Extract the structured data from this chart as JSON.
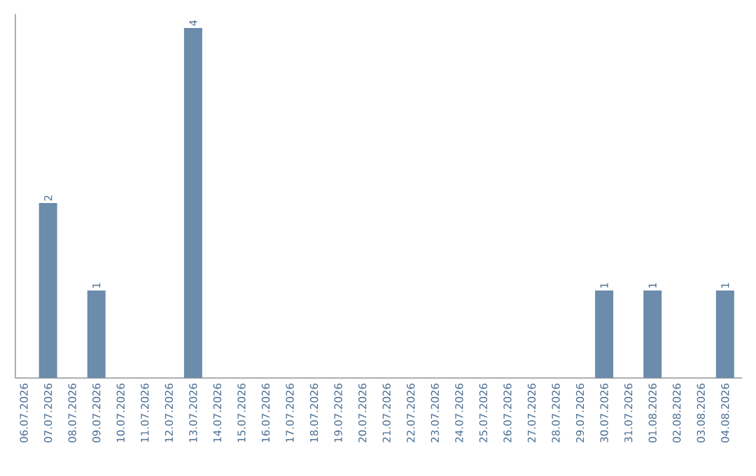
{
  "chart_data": {
    "type": "bar",
    "categories": [
      "06.07.2026",
      "07.07.2026",
      "08.07.2026",
      "09.07.2026",
      "10.07.2026",
      "11.07.2026",
      "12.07.2026",
      "13.07.2026",
      "14.07.2026",
      "15.07.2026",
      "16.07.2026",
      "17.07.2026",
      "18.07.2026",
      "19.07.2026",
      "20.07.2026",
      "21.07.2026",
      "22.07.2026",
      "23.07.2026",
      "24.07.2026",
      "25.07.2026",
      "26.07.2026",
      "27.07.2026",
      "28.07.2026",
      "29.07.2026",
      "30.07.2026",
      "31.07.2026",
      "01.08.2026",
      "02.08.2026",
      "03.08.2026",
      "04.08.2026"
    ],
    "values": [
      null,
      2,
      null,
      1,
      null,
      null,
      null,
      4,
      null,
      null,
      null,
      null,
      null,
      null,
      null,
      null,
      null,
      null,
      null,
      null,
      null,
      null,
      null,
      null,
      1,
      null,
      1,
      null,
      null,
      1
    ],
    "color": "#6b8cab",
    "data_labels": true
  }
}
